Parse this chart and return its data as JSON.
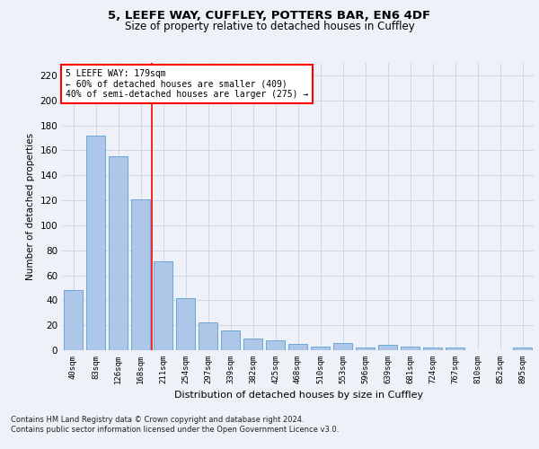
{
  "title1": "5, LEEFE WAY, CUFFLEY, POTTERS BAR, EN6 4DF",
  "title2": "Size of property relative to detached houses in Cuffley",
  "xlabel": "Distribution of detached houses by size in Cuffley",
  "ylabel": "Number of detached properties",
  "categories": [
    "40sqm",
    "83sqm",
    "126sqm",
    "168sqm",
    "211sqm",
    "254sqm",
    "297sqm",
    "339sqm",
    "382sqm",
    "425sqm",
    "468sqm",
    "510sqm",
    "553sqm",
    "596sqm",
    "639sqm",
    "681sqm",
    "724sqm",
    "767sqm",
    "810sqm",
    "852sqm",
    "895sqm"
  ],
  "values": [
    48,
    172,
    155,
    121,
    71,
    42,
    22,
    16,
    9,
    8,
    5,
    3,
    6,
    2,
    4,
    3,
    2,
    2,
    0,
    0,
    2
  ],
  "bar_color": "#aec6e8",
  "bar_edge_color": "#5a9fd4",
  "grid_color": "#c8d4e8",
  "vline_x": 3.5,
  "vline_color": "red",
  "annotation_line1": "5 LEEFE WAY: 179sqm",
  "annotation_line2": "← 60% of detached houses are smaller (409)",
  "annotation_line3": "40% of semi-detached houses are larger (275) →",
  "annotation_box_color": "white",
  "annotation_box_edge": "red",
  "ylim": [
    0,
    230
  ],
  "yticks": [
    0,
    20,
    40,
    60,
    80,
    100,
    120,
    140,
    160,
    180,
    200,
    220
  ],
  "footnote1": "Contains HM Land Registry data © Crown copyright and database right 2024.",
  "footnote2": "Contains public sector information licensed under the Open Government Licence v3.0.",
  "bg_color": "#eef2f8"
}
